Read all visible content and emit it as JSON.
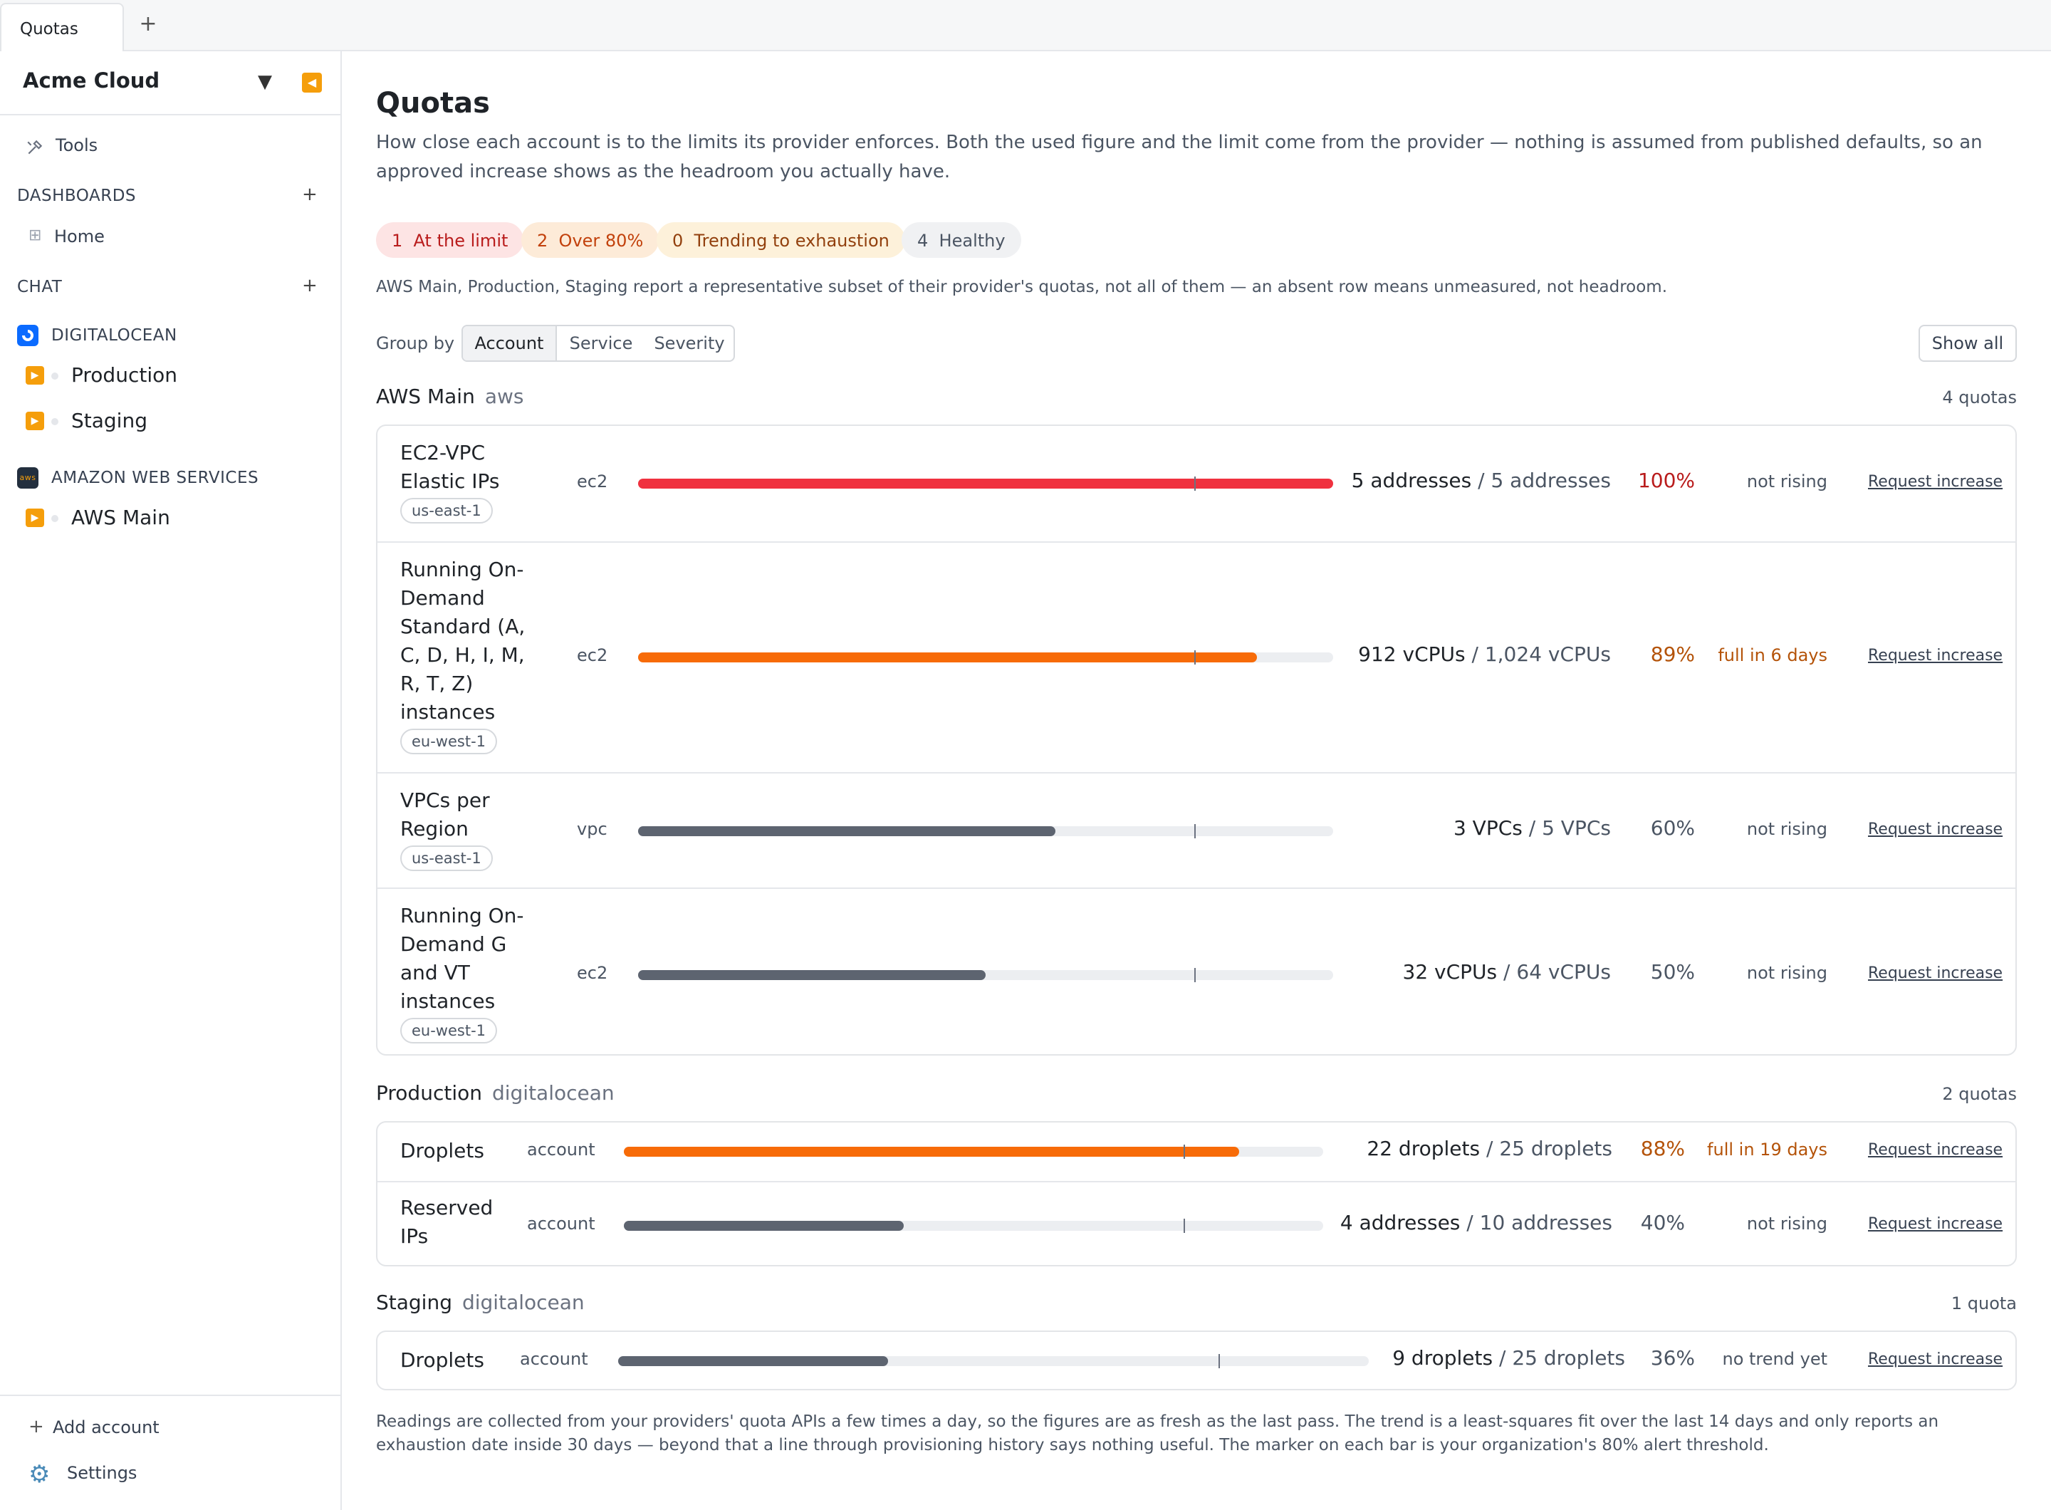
{
  "tabs": [
    {
      "label": "Quotas"
    }
  ],
  "sidebar": {
    "org": "Acme Cloud",
    "tools": "Tools",
    "dashboards": "DASHBOARDS",
    "home": "Home",
    "chat": "CHAT",
    "providers": [
      {
        "name": "DIGITALOCEAN",
        "icon": "digitalocean-icon",
        "accounts": [
          "Production",
          "Staging"
        ]
      },
      {
        "name": "AMAZON WEB SERVICES",
        "icon": "aws-icon",
        "accounts": [
          "AWS Main"
        ]
      }
    ],
    "add_account": "Add account",
    "settings": "Settings"
  },
  "main": {
    "title": "Quotas",
    "description": "How close each account is to the limits its provider enforces. Both the used figure and the limit come from the provider — nothing is assumed from published defaults, so an approved increase shows as the headroom you actually have.",
    "chips": [
      {
        "count": "1",
        "label": "At the limit"
      },
      {
        "count": "2",
        "label": "Over 80%"
      },
      {
        "count": "0",
        "label": "Trending to exhaustion"
      },
      {
        "count": "4",
        "label": "Healthy"
      }
    ],
    "note": "AWS Main, Production, Staging report a representative subset of their provider's quotas, not all of them — an absent row means unmeasured, not headroom.",
    "group_by_label": "Group by",
    "group_by_options": [
      "Account",
      "Service",
      "Severity"
    ],
    "group_by_selected": "Account",
    "show_all": "Show all",
    "request_label": "Request increase",
    "alert_threshold": 0.8,
    "groups": [
      {
        "account": "AWS Main",
        "provider": "aws",
        "count_label": "4 quotas",
        "rows": [
          {
            "name": "EC2-VPC Elastic IPs",
            "region": "us-east-1",
            "service": "ec2",
            "used": "5 addresses",
            "limit": "5 addresses",
            "pct_label": "100%",
            "fraction": 1.0,
            "trend": "not rising"
          },
          {
            "name": "Running On-Demand Standard (A, C, D, H, I, M, R, T, Z) instances",
            "region": "eu-west-1",
            "service": "ec2",
            "used": "912 vCPUs",
            "limit": "1,024 vCPUs",
            "pct_label": "89%",
            "fraction": 0.89,
            "trend": "full in 6 days"
          },
          {
            "name": "VPCs per Region",
            "region": "us-east-1",
            "service": "vpc",
            "used": "3 VPCs",
            "limit": "5 VPCs",
            "pct_label": "60%",
            "fraction": 0.6,
            "trend": "not rising"
          },
          {
            "name": "Running On-Demand G and VT instances",
            "region": "eu-west-1",
            "service": "ec2",
            "used": "32 vCPUs",
            "limit": "64 vCPUs",
            "pct_label": "50%",
            "fraction": 0.5,
            "trend": "not rising"
          }
        ]
      },
      {
        "account": "Production",
        "provider": "digitalocean",
        "count_label": "2 quotas",
        "rows": [
          {
            "name": "Droplets",
            "service": "account",
            "used": "22 droplets",
            "limit": "25 droplets",
            "pct_label": "88%",
            "fraction": 0.88,
            "trend": "full in 19 days"
          },
          {
            "name": "Reserved IPs",
            "service": "account",
            "used": "4 addresses",
            "limit": "10 addresses",
            "pct_label": "40%",
            "fraction": 0.4,
            "trend": "not rising"
          }
        ]
      },
      {
        "account": "Staging",
        "provider": "digitalocean",
        "count_label": "1 quota",
        "rows": [
          {
            "name": "Droplets",
            "service": "account",
            "used": "9 droplets",
            "limit": "25 droplets",
            "pct_label": "36%",
            "fraction": 0.36,
            "trend": "no trend yet"
          }
        ]
      }
    ],
    "footer": "Readings are collected from your providers' quota APIs a few times a day, so the figures are as fresh as the last pass. The trend is a least-squares fit over the last 14 days and only reports an exhaustion date inside 30 days — beyond that a line through provisioning history says nothing useful. The marker on each bar is your organization's 80% alert threshold."
  },
  "colors": {
    "at_limit": "#f0313f",
    "over_80": "#f76b08",
    "healthy": "#5d6470",
    "accent": "#f59e0b"
  }
}
